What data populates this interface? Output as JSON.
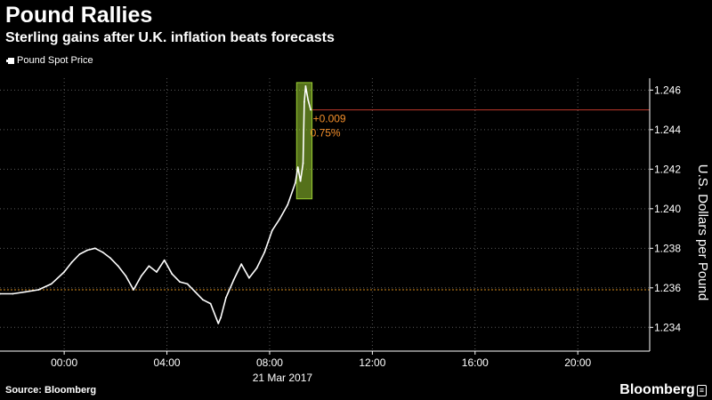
{
  "title": "Pound Rallies",
  "subtitle": "Sterling gains after U.K. inflation beats forecasts",
  "legend": {
    "label": "Pound Spot Price"
  },
  "source": "Source: Bloomberg",
  "brand": "Bloomberg",
  "colors": {
    "background": "#000000",
    "series": "#ffffff",
    "grid": "#5a5a5a",
    "reference_line": "#d88c1a",
    "current_line": "#c0392b",
    "highlight": "#9acd32",
    "annotation": "#f28e2b"
  },
  "chart_data": {
    "type": "line",
    "title": "Pound Rallies",
    "subtitle": "Sterling gains after U.K. inflation beats forecasts",
    "xlabel": "21 Mar 2017",
    "ylabel": "U.S. Dollars per Pound",
    "x_unit": "hours",
    "xlim": [
      -2.5,
      22.8
    ],
    "ylim": [
      1.2328,
      1.2466
    ],
    "x_ticks": [
      {
        "value": 0,
        "label": "00:00"
      },
      {
        "value": 4,
        "label": "04:00"
      },
      {
        "value": 8,
        "label": "08:00"
      },
      {
        "value": 12,
        "label": "12:00"
      },
      {
        "value": 16,
        "label": "16:00"
      },
      {
        "value": 20,
        "label": "20:00"
      }
    ],
    "y_ticks": [
      {
        "value": 1.234,
        "label": "1.234"
      },
      {
        "value": 1.236,
        "label": "1.236"
      },
      {
        "value": 1.238,
        "label": "1.238"
      },
      {
        "value": 1.24,
        "label": "1.240"
      },
      {
        "value": 1.242,
        "label": "1.242"
      },
      {
        "value": 1.244,
        "label": "1.244"
      },
      {
        "value": 1.246,
        "label": "1.246"
      }
    ],
    "grid": true,
    "y_axis_position": "right",
    "legend_position": "top-left",
    "series": [
      {
        "name": "Pound Spot Price",
        "x": [
          -2.5,
          -2.0,
          -1.5,
          -1.0,
          -0.5,
          0.0,
          0.3,
          0.6,
          0.9,
          1.2,
          1.5,
          1.8,
          2.1,
          2.4,
          2.7,
          3.0,
          3.3,
          3.6,
          3.9,
          4.2,
          4.5,
          4.8,
          5.1,
          5.4,
          5.7,
          6.0,
          6.1,
          6.3,
          6.6,
          6.9,
          7.2,
          7.5,
          7.8,
          8.1,
          8.4,
          8.7,
          9.0,
          9.1,
          9.2,
          9.3,
          9.35,
          9.4,
          9.5,
          9.6
        ],
        "values": [
          1.2357,
          1.2357,
          1.2358,
          1.2359,
          1.2362,
          1.2368,
          1.2373,
          1.2377,
          1.2379,
          1.238,
          1.2378,
          1.2375,
          1.2371,
          1.2366,
          1.2359,
          1.2366,
          1.2371,
          1.2368,
          1.2374,
          1.2367,
          1.2363,
          1.2362,
          1.2358,
          1.2354,
          1.2352,
          1.2342,
          1.2345,
          1.2355,
          1.2364,
          1.2372,
          1.2365,
          1.237,
          1.2378,
          1.2389,
          1.2395,
          1.2402,
          1.2413,
          1.2421,
          1.2414,
          1.2423,
          1.2454,
          1.2462,
          1.2455,
          1.245
        ]
      }
    ],
    "reference_line": {
      "value": 1.2359,
      "style": "dotted"
    },
    "current_line": {
      "value": 1.245
    },
    "highlight_x": [
      9.05,
      9.65
    ],
    "annotation": {
      "change": "+0.009",
      "percent": "0.75%"
    }
  }
}
